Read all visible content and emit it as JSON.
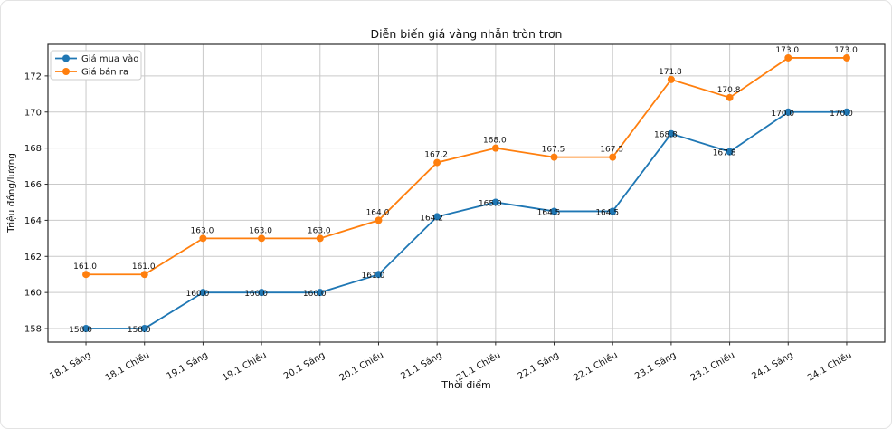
{
  "chart_data": {
    "type": "line",
    "title": "Diễn biến giá vàng nhẫn tròn trơn",
    "xlabel": "Thời điểm",
    "ylabel": "Triệu đồng/lượng",
    "categories": [
      "18.1 Sáng",
      "18.1 Chiều",
      "19.1 Sáng",
      "19.1 Chiều",
      "20.1 Sáng",
      "20.1 Chiều",
      "21.1 Sáng",
      "21.1 Chiều",
      "22.1 Sáng",
      "22.1 Chiều",
      "23.1 Sáng",
      "23.1 Chiều",
      "24.1 Sáng",
      "24.1 Chiều"
    ],
    "series": [
      {
        "name": "Giá mua vào",
        "color": "#1f77b4",
        "values": [
          158.0,
          158.0,
          160.0,
          160.0,
          160.0,
          161.0,
          164.2,
          165.0,
          164.5,
          164.5,
          168.8,
          167.8,
          170.0,
          170.0
        ],
        "label_position": "on-point"
      },
      {
        "name": "Giá bán ra",
        "color": "#ff7f0e",
        "values": [
          161.0,
          161.0,
          163.0,
          163.0,
          163.0,
          164.0,
          167.2,
          168.0,
          167.5,
          167.5,
          171.8,
          170.8,
          173.0,
          173.0
        ],
        "label_position": "above"
      }
    ],
    "yticks": [
      158,
      160,
      162,
      164,
      166,
      168,
      170,
      172
    ],
    "ylim": [
      157.25,
      173.75
    ],
    "grid": true,
    "legend_position": "upper-left",
    "value_label_decimals": 1
  }
}
